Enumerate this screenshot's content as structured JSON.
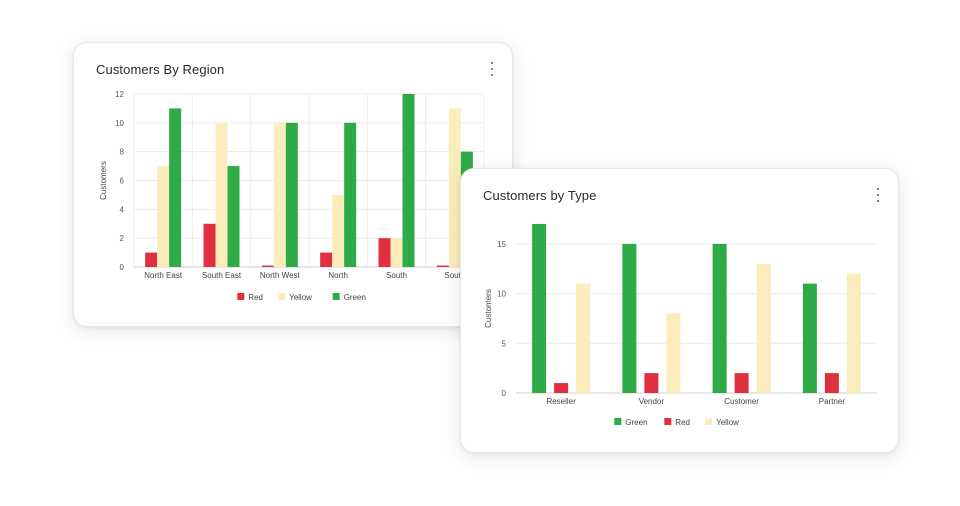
{
  "chart_data": [
    {
      "id": "region",
      "type": "bar",
      "title": "Customers By Region",
      "xlabel": "",
      "ylabel": "Customers",
      "categories": [
        "North East",
        "South East",
        "North West",
        "North",
        "South",
        "South"
      ],
      "ylim": [
        0,
        12
      ],
      "yticks": [
        0,
        2,
        4,
        6,
        8,
        10,
        12
      ],
      "grid": true,
      "legend_position": "bottom",
      "series": [
        {
          "name": "Red",
          "color": "#e0303f",
          "values": [
            1,
            3,
            0.1,
            1,
            2,
            0.1
          ]
        },
        {
          "name": "Yellow",
          "color": "#fbedbb",
          "values": [
            7,
            10,
            10,
            5,
            2,
            11
          ]
        },
        {
          "name": "Green",
          "color": "#2eaa46",
          "values": [
            11,
            7,
            10,
            10,
            12,
            8
          ]
        }
      ]
    },
    {
      "id": "type",
      "type": "bar",
      "title": "Customers by Type",
      "xlabel": "",
      "ylabel": "Customers",
      "categories": [
        "Reseller",
        "Vendor",
        "Customer",
        "Partner"
      ],
      "ylim": [
        0,
        17
      ],
      "yticks": [
        0,
        5,
        10,
        15
      ],
      "grid": true,
      "legend_position": "bottom",
      "series": [
        {
          "name": "Green",
          "color": "#2eaa46",
          "values": [
            17,
            15,
            15,
            11
          ]
        },
        {
          "name": "Red",
          "color": "#e0303f",
          "values": [
            1,
            2,
            2,
            2
          ]
        },
        {
          "name": "Yellow",
          "color": "#fbedbb",
          "values": [
            11,
            8,
            13,
            12
          ]
        }
      ]
    }
  ],
  "menu_icon": "more-vertical-icon"
}
